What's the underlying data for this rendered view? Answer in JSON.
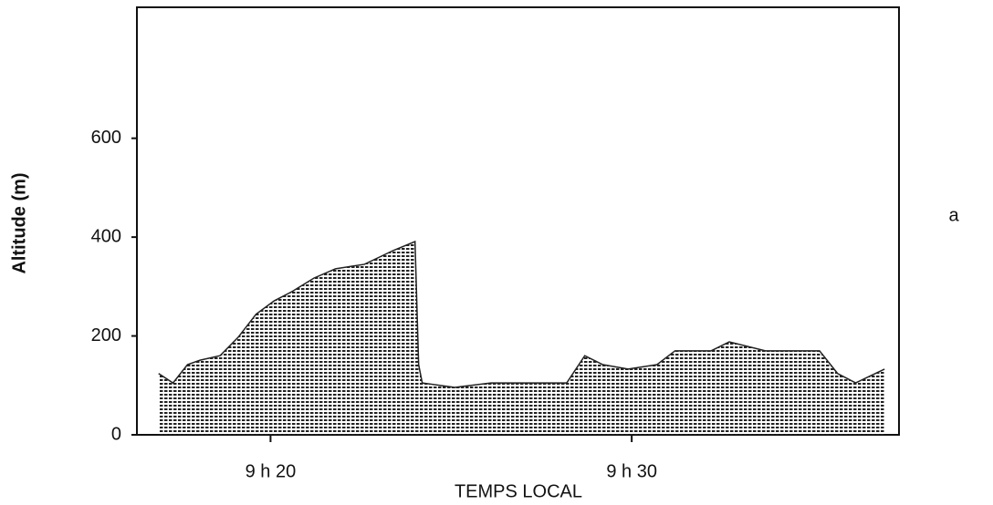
{
  "chart_data": {
    "type": "area",
    "y_label": "Altitude (m)",
    "x_label": "TEMPS LOCAL",
    "panel_label": "a",
    "color": "#222222",
    "xlim": [
      16.3,
      37.4
    ],
    "xticks": [
      {
        "value": 20,
        "label": "9 h 20"
      },
      {
        "value": 30,
        "label": "9 h 30"
      }
    ],
    "ylim": [
      0,
      865
    ],
    "yticks": [
      0,
      200,
      400,
      600
    ],
    "x": [
      16.9,
      17.3,
      17.7,
      18.05,
      18.6,
      19.1,
      19.6,
      20.1,
      20.6,
      21.2,
      21.8,
      22.6,
      23.4,
      24.0,
      24.1,
      24.2,
      25.1,
      26.1,
      27.1,
      28.2,
      28.7,
      29.2,
      29.9,
      30.7,
      31.2,
      32.2,
      32.7,
      33.7,
      35.2,
      35.7,
      36.2,
      37.0
    ],
    "values": [
      124,
      105,
      142,
      151,
      160,
      197,
      244,
      271,
      290,
      317,
      336,
      345,
      373,
      391,
      142,
      105,
      96,
      105,
      105,
      105,
      160,
      142,
      133,
      142,
      170,
      170,
      188,
      170,
      170,
      124,
      105,
      133
    ]
  }
}
